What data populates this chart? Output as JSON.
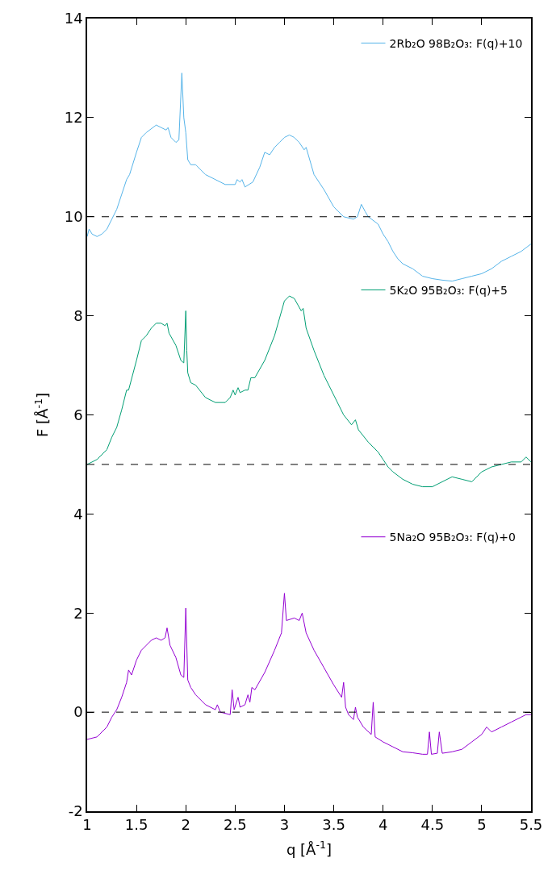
{
  "chart_data": {
    "type": "line",
    "xlabel": "q [Å$^{-1}$]",
    "ylabel": "F [Å$^{-1}$]",
    "xlim": [
      1,
      5.5
    ],
    "xticks": [
      1,
      1.5,
      2,
      2.5,
      3,
      3.5,
      4,
      4.5,
      5,
      5.5
    ],
    "ylim": [
      -2,
      14
    ],
    "yticks": [
      -2,
      0,
      2,
      4,
      6,
      8,
      10,
      12,
      14
    ],
    "legend": "top right",
    "marker": "none",
    "line_style": "solid",
    "ref_lines": [
      {
        "axis": "y",
        "value": 10,
        "color": "#000000",
        "line_style": "dashed"
      },
      {
        "axis": "y",
        "value": 5,
        "color": "#000000",
        "line_style": "dashed"
      },
      {
        "axis": "y",
        "value": 0,
        "color": "#000000",
        "line_style": "dashed"
      }
    ],
    "series": [
      {
        "name": "2Rb₂O 98B₂O₃: F(q)+10",
        "color": "#56b4e9",
        "x": [
          1.0,
          1.02,
          1.05,
          1.1,
          1.15,
          1.2,
          1.25,
          1.3,
          1.35,
          1.4,
          1.43,
          1.5,
          1.55,
          1.6,
          1.7,
          1.75,
          1.8,
          1.82,
          1.85,
          1.9,
          1.93,
          1.96,
          1.98,
          2.0,
          2.02,
          2.05,
          2.1,
          2.2,
          2.3,
          2.4,
          2.5,
          2.52,
          2.55,
          2.57,
          2.6,
          2.68,
          2.75,
          2.8,
          2.85,
          2.9,
          2.95,
          3.0,
          3.05,
          3.1,
          3.15,
          3.2,
          3.22,
          3.3,
          3.4,
          3.5,
          3.6,
          3.7,
          3.74,
          3.78,
          3.82,
          3.85,
          3.95,
          4.0,
          4.05,
          4.1,
          4.15,
          4.2,
          4.3,
          4.4,
          4.5,
          4.6,
          4.7,
          4.8,
          4.9,
          5.0,
          5.1,
          5.2,
          5.3,
          5.4,
          5.5
        ],
        "values": [
          9.6,
          9.75,
          9.65,
          9.6,
          9.65,
          9.75,
          9.95,
          10.15,
          10.45,
          10.75,
          10.85,
          11.3,
          11.6,
          11.7,
          11.85,
          11.8,
          11.75,
          11.8,
          11.6,
          11.5,
          11.55,
          12.9,
          12.0,
          11.7,
          11.15,
          11.05,
          11.05,
          10.85,
          10.75,
          10.65,
          10.65,
          10.75,
          10.7,
          10.75,
          10.6,
          10.7,
          11.0,
          11.3,
          11.25,
          11.4,
          11.5,
          11.6,
          11.65,
          11.6,
          11.5,
          11.35,
          11.4,
          10.85,
          10.55,
          10.2,
          10.0,
          9.95,
          10.0,
          10.25,
          10.1,
          10.0,
          9.85,
          9.65,
          9.5,
          9.3,
          9.15,
          9.05,
          8.95,
          8.8,
          8.75,
          8.72,
          8.7,
          8.75,
          8.8,
          8.85,
          8.95,
          9.1,
          9.2,
          9.3,
          9.45
        ]
      },
      {
        "name": "5K₂O 95B₂O₃: F(q)+5",
        "color": "#009e73",
        "x": [
          1.0,
          1.1,
          1.2,
          1.25,
          1.3,
          1.35,
          1.4,
          1.42,
          1.5,
          1.55,
          1.6,
          1.65,
          1.7,
          1.75,
          1.79,
          1.81,
          1.83,
          1.9,
          1.95,
          1.98,
          2.0,
          2.01,
          2.02,
          2.05,
          2.1,
          2.2,
          2.3,
          2.4,
          2.45,
          2.48,
          2.5,
          2.53,
          2.55,
          2.6,
          2.63,
          2.66,
          2.7,
          2.8,
          2.9,
          3.0,
          3.05,
          3.1,
          3.17,
          3.19,
          3.22,
          3.3,
          3.4,
          3.5,
          3.6,
          3.68,
          3.72,
          3.75,
          3.85,
          3.95,
          4.0,
          4.05,
          4.1,
          4.2,
          4.3,
          4.4,
          4.5,
          4.6,
          4.7,
          4.8,
          4.9,
          5.0,
          5.1,
          5.2,
          5.3,
          5.4,
          5.45,
          5.5
        ],
        "values": [
          5.0,
          5.1,
          5.3,
          5.55,
          5.75,
          6.1,
          6.5,
          6.5,
          7.1,
          7.5,
          7.6,
          7.75,
          7.85,
          7.85,
          7.8,
          7.85,
          7.65,
          7.4,
          7.1,
          7.05,
          8.1,
          7.3,
          6.85,
          6.65,
          6.6,
          6.35,
          6.25,
          6.25,
          6.35,
          6.5,
          6.4,
          6.55,
          6.45,
          6.5,
          6.5,
          6.75,
          6.75,
          7.1,
          7.6,
          8.3,
          8.4,
          8.35,
          8.1,
          8.15,
          7.75,
          7.3,
          6.8,
          6.4,
          6.0,
          5.8,
          5.9,
          5.7,
          5.45,
          5.25,
          5.1,
          4.95,
          4.85,
          4.7,
          4.6,
          4.55,
          4.55,
          4.65,
          4.75,
          4.7,
          4.65,
          4.85,
          4.95,
          5.0,
          5.05,
          5.05,
          5.15,
          5.05
        ]
      },
      {
        "name": "5Na₂O 95B₂O₃: F(q)+0",
        "color": "#9400d3",
        "x": [
          1.0,
          1.1,
          1.2,
          1.25,
          1.3,
          1.35,
          1.4,
          1.42,
          1.45,
          1.5,
          1.55,
          1.6,
          1.65,
          1.7,
          1.75,
          1.79,
          1.81,
          1.84,
          1.9,
          1.95,
          1.98,
          2.0,
          2.02,
          2.05,
          2.1,
          2.2,
          2.3,
          2.32,
          2.35,
          2.45,
          2.47,
          2.49,
          2.53,
          2.55,
          2.6,
          2.63,
          2.65,
          2.67,
          2.7,
          2.8,
          2.9,
          2.97,
          3.0,
          3.02,
          3.1,
          3.15,
          3.18,
          3.22,
          3.3,
          3.4,
          3.5,
          3.58,
          3.6,
          3.62,
          3.65,
          3.7,
          3.72,
          3.74,
          3.8,
          3.88,
          3.9,
          3.92,
          4.0,
          4.1,
          4.2,
          4.3,
          4.4,
          4.45,
          4.47,
          4.49,
          4.55,
          4.57,
          4.6,
          4.7,
          4.8,
          4.9,
          5.0,
          5.05,
          5.1,
          5.2,
          5.3,
          5.4,
          5.45,
          5.5
        ],
        "values": [
          -0.55,
          -0.5,
          -0.3,
          -0.1,
          0.05,
          0.3,
          0.6,
          0.85,
          0.75,
          1.05,
          1.25,
          1.35,
          1.45,
          1.5,
          1.45,
          1.5,
          1.7,
          1.35,
          1.1,
          0.75,
          0.7,
          2.1,
          0.65,
          0.5,
          0.35,
          0.15,
          0.05,
          0.15,
          0.0,
          -0.05,
          0.45,
          0.05,
          0.3,
          0.1,
          0.15,
          0.35,
          0.2,
          0.5,
          0.45,
          0.8,
          1.25,
          1.6,
          2.4,
          1.85,
          1.9,
          1.85,
          2.0,
          1.6,
          1.25,
          0.9,
          0.55,
          0.3,
          0.6,
          0.1,
          -0.05,
          -0.15,
          0.1,
          -0.1,
          -0.3,
          -0.45,
          0.2,
          -0.5,
          -0.6,
          -0.7,
          -0.8,
          -0.82,
          -0.85,
          -0.85,
          -0.4,
          -0.85,
          -0.83,
          -0.4,
          -0.83,
          -0.8,
          -0.75,
          -0.6,
          -0.45,
          -0.3,
          -0.4,
          -0.3,
          -0.2,
          -0.1,
          -0.05,
          -0.05
        ]
      }
    ]
  }
}
